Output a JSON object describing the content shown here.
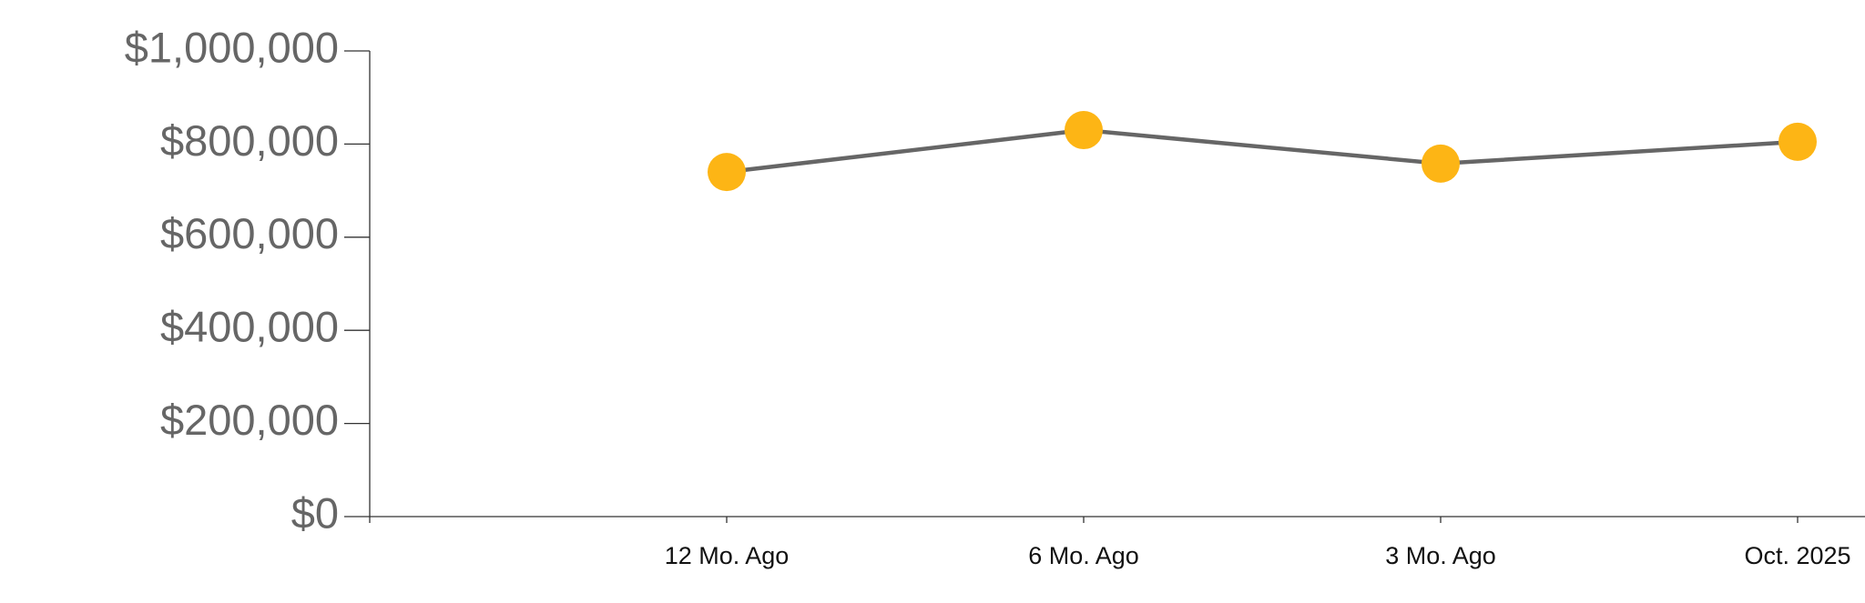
{
  "chart_data": {
    "type": "line",
    "categories": [
      null,
      "12 Mo. Ago",
      "6 Mo. Ago",
      "3 Mo. Ago",
      "Oct. 2025"
    ],
    "series": [
      {
        "color": "#666666",
        "marker_color": "#fdb515",
        "values": [
          null,
          740000,
          830000,
          758000,
          805000
        ]
      }
    ],
    "ylim": [
      0,
      1000000
    ],
    "yticks": [
      {
        "value": 0,
        "label": "$0"
      },
      {
        "value": 200000,
        "label": "$200,000"
      },
      {
        "value": 400000,
        "label": "$400,000"
      },
      {
        "value": 600000,
        "label": "$600,000"
      },
      {
        "value": 800000,
        "label": "$800,000"
      },
      {
        "value": 1000000,
        "label": "$1,000,000"
      }
    ],
    "grid": false
  }
}
